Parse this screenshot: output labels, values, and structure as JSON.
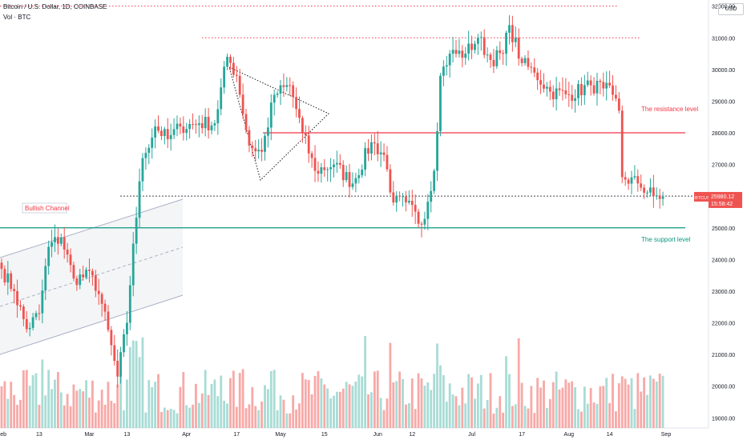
{
  "header": {
    "symbol_title": "Bitcoin / U.S. Dollar, 1D, COINBASE",
    "volume_label": "Vol · BTC",
    "currency_button": "USD"
  },
  "price_tag": {
    "symbol": "BTCUSD",
    "price": "25980.12",
    "countdown": "15:58:42"
  },
  "colors": {
    "up": "#26a69a",
    "down": "#ef5350",
    "resistance": "#f23645",
    "support": "#089981"
  },
  "chart_data": {
    "type": "candlestick",
    "title": "Bitcoin / U.S. Dollar, 1D, COINBASE",
    "y_axis": {
      "ylim": [
        18400,
        32800
      ],
      "ticks": [
        19000,
        20000,
        21000,
        22000,
        23000,
        24000,
        25000,
        26000,
        27000,
        28000,
        29000,
        30000,
        31000,
        32000
      ],
      "tick_labels": [
        "19000.00",
        "20000.00",
        "21000.00",
        "22000.00",
        "23000.00",
        "24000.00",
        "25000.00",
        "26000.00",
        "27000.00",
        "28000.00",
        "29000.00",
        "30000.00",
        "31000.00",
        "32000.00"
      ]
    },
    "x_axis": {
      "ticks": [
        {
          "label": "Feb",
          "date": "2023-02-01"
        },
        {
          "label": "13",
          "date": "2023-02-13"
        },
        {
          "label": "Mar",
          "date": "2023-03-01"
        },
        {
          "label": "13",
          "date": "2023-03-13"
        },
        {
          "label": "Apr",
          "date": "2023-04-01"
        },
        {
          "label": "17",
          "date": "2023-04-17"
        },
        {
          "label": "May",
          "date": "2023-05-01"
        },
        {
          "label": "15",
          "date": "2023-05-15"
        },
        {
          "label": "Jun",
          "date": "2023-06-01"
        },
        {
          "label": "12",
          "date": "2023-06-12"
        },
        {
          "label": "Jul",
          "date": "2023-07-01"
        },
        {
          "label": "17",
          "date": "2023-07-17"
        },
        {
          "label": "Aug",
          "date": "2023-08-01"
        },
        {
          "label": "14",
          "date": "2023-08-14"
        },
        {
          "label": "Sep",
          "date": "2023-09-01"
        }
      ]
    },
    "price_path": [
      {
        "date": "2023-02-01",
        "close": 23700
      },
      {
        "date": "2023-02-05",
        "close": 23000
      },
      {
        "date": "2023-02-09",
        "close": 21800
      },
      {
        "date": "2023-02-13",
        "close": 22300
      },
      {
        "date": "2023-02-16",
        "close": 24400
      },
      {
        "date": "2023-02-20",
        "close": 24700
      },
      {
        "date": "2023-02-24",
        "close": 23400
      },
      {
        "date": "2023-03-02",
        "close": 23500
      },
      {
        "date": "2023-03-05",
        "close": 22600
      },
      {
        "date": "2023-03-10",
        "close": 20300
      },
      {
        "date": "2023-03-13",
        "close": 22000
      },
      {
        "date": "2023-03-15",
        "close": 24500
      },
      {
        "date": "2023-03-18",
        "close": 27200
      },
      {
        "date": "2023-03-22",
        "close": 28200
      },
      {
        "date": "2023-03-26",
        "close": 27800
      },
      {
        "date": "2023-03-30",
        "close": 28200
      },
      {
        "date": "2023-04-05",
        "close": 28300
      },
      {
        "date": "2023-04-10",
        "close": 28300
      },
      {
        "date": "2023-04-14",
        "close": 30400
      },
      {
        "date": "2023-04-17",
        "close": 29800
      },
      {
        "date": "2023-04-21",
        "close": 27600
      },
      {
        "date": "2023-04-25",
        "close": 27400
      },
      {
        "date": "2023-04-29",
        "close": 29200
      },
      {
        "date": "2023-05-04",
        "close": 29500
      },
      {
        "date": "2023-05-08",
        "close": 28000
      },
      {
        "date": "2023-05-12",
        "close": 26800
      },
      {
        "date": "2023-05-18",
        "close": 27000
      },
      {
        "date": "2023-05-24",
        "close": 26400
      },
      {
        "date": "2023-05-30",
        "close": 27700
      },
      {
        "date": "2023-06-03",
        "close": 27300
      },
      {
        "date": "2023-06-06",
        "close": 25800
      },
      {
        "date": "2023-06-10",
        "close": 25800
      },
      {
        "date": "2023-06-15",
        "close": 25100
      },
      {
        "date": "2023-06-19",
        "close": 26800
      },
      {
        "date": "2023-06-21",
        "close": 29800
      },
      {
        "date": "2023-06-24",
        "close": 30500
      },
      {
        "date": "2023-06-29",
        "close": 30500
      },
      {
        "date": "2023-07-03",
        "close": 31000
      },
      {
        "date": "2023-07-07",
        "close": 30300
      },
      {
        "date": "2023-07-11",
        "close": 30500
      },
      {
        "date": "2023-07-13",
        "close": 31400
      },
      {
        "date": "2023-07-17",
        "close": 30200
      },
      {
        "date": "2023-07-21",
        "close": 29900
      },
      {
        "date": "2023-07-26",
        "close": 29300
      },
      {
        "date": "2023-08-01",
        "close": 29200
      },
      {
        "date": "2023-08-08",
        "close": 29500
      },
      {
        "date": "2023-08-12",
        "close": 29400
      },
      {
        "date": "2023-08-15",
        "close": 29200
      },
      {
        "date": "2023-08-17",
        "close": 28700
      },
      {
        "date": "2023-08-18",
        "close": 26600
      },
      {
        "date": "2023-08-23",
        "close": 26400
      },
      {
        "date": "2023-08-28",
        "close": 26000
      },
      {
        "date": "2023-08-31",
        "close": 25980
      }
    ],
    "levels": [
      {
        "name": "resistance",
        "label": "The resistance level",
        "price": 28000,
        "style": "solid",
        "color": "#f23645"
      },
      {
        "name": "support",
        "label": "The support level",
        "price": 25000,
        "style": "solid",
        "color": "#089981"
      },
      {
        "name": "dotted-top",
        "price": 32000,
        "style": "dotted",
        "color": "#f23645"
      },
      {
        "name": "dotted-second",
        "price": 31000,
        "style": "dotted",
        "color": "#f23645"
      },
      {
        "name": "dotted-mid",
        "price": 26000,
        "style": "dotted",
        "color": "#434651"
      }
    ],
    "annotations": [
      {
        "type": "channel",
        "label": "Bullish Channel"
      },
      {
        "type": "triangle"
      }
    ]
  }
}
